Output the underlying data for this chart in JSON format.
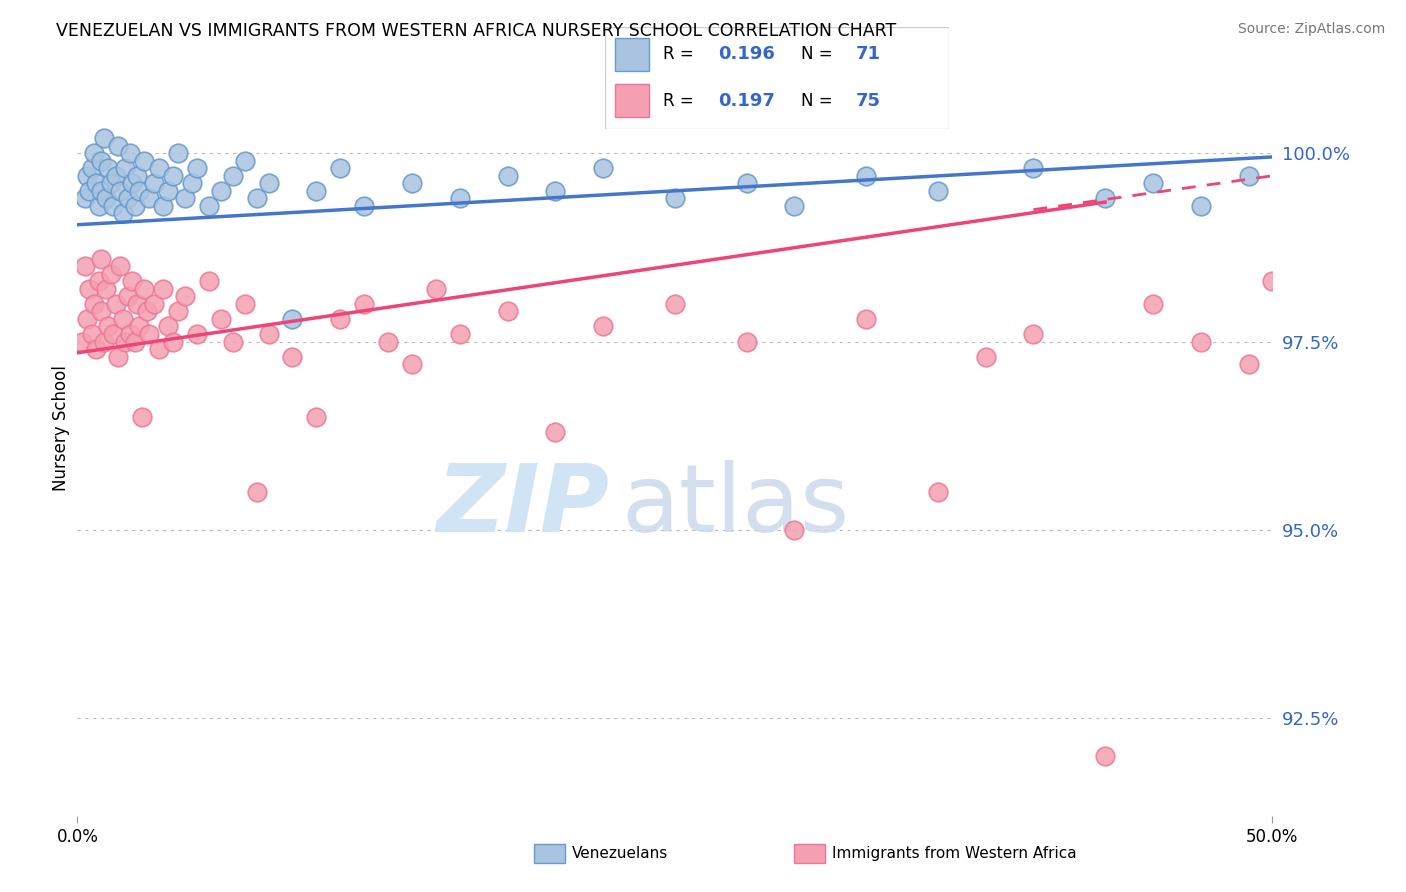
{
  "title": "VENEZUELAN VS IMMIGRANTS FROM WESTERN AFRICA NURSERY SCHOOL CORRELATION CHART",
  "source": "Source: ZipAtlas.com",
  "ylabel": "Nursery School",
  "ytick_values": [
    92.5,
    95.0,
    97.5,
    100.0
  ],
  "xlim": [
    0.0,
    50.0
  ],
  "ylim": [
    91.2,
    101.5
  ],
  "legend_blue_R": "0.196",
  "legend_blue_N": "71",
  "legend_pink_R": "0.197",
  "legend_pink_N": "75",
  "legend_label_blue": "Venezuelans",
  "legend_label_pink": "Immigrants from Western Africa",
  "blue_color": "#A8C4E0",
  "pink_color": "#F4A0B0",
  "blue_edge_color": "#6699CC",
  "pink_edge_color": "#EE7799",
  "blue_line_color": "#4477CC",
  "pink_line_color": "#EE4477",
  "accent_color": "#3366CC",
  "trend_blue_x0": 0.0,
  "trend_blue_y0": 99.05,
  "trend_blue_x1": 50.0,
  "trend_blue_y1": 99.95,
  "trend_pink_solid_x0": 0.0,
  "trend_pink_solid_y0": 97.35,
  "trend_pink_solid_x1": 43.0,
  "trend_pink_solid_y1": 99.35,
  "trend_pink_dash_x0": 40.0,
  "trend_pink_dash_y0": 99.25,
  "trend_pink_dash_x1": 50.0,
  "trend_pink_dash_y1": 99.7,
  "blue_x": [
    0.3,
    0.4,
    0.5,
    0.6,
    0.7,
    0.8,
    0.9,
    1.0,
    1.0,
    1.1,
    1.2,
    1.3,
    1.4,
    1.5,
    1.6,
    1.7,
    1.8,
    1.9,
    2.0,
    2.1,
    2.2,
    2.3,
    2.4,
    2.5,
    2.6,
    2.8,
    3.0,
    3.2,
    3.4,
    3.6,
    3.8,
    4.0,
    4.2,
    4.5,
    4.8,
    5.0,
    5.5,
    6.0,
    6.5,
    7.0,
    7.5,
    8.0,
    9.0,
    10.0,
    11.0,
    12.0,
    14.0,
    16.0,
    18.0,
    20.0,
    22.0,
    25.0,
    28.0,
    30.0,
    33.0,
    36.0,
    40.0,
    43.0,
    45.0,
    47.0,
    49.0
  ],
  "blue_y": [
    99.4,
    99.7,
    99.5,
    99.8,
    100.0,
    99.6,
    99.3,
    99.9,
    99.5,
    100.2,
    99.4,
    99.8,
    99.6,
    99.3,
    99.7,
    100.1,
    99.5,
    99.2,
    99.8,
    99.4,
    100.0,
    99.6,
    99.3,
    99.7,
    99.5,
    99.9,
    99.4,
    99.6,
    99.8,
    99.3,
    99.5,
    99.7,
    100.0,
    99.4,
    99.6,
    99.8,
    99.3,
    99.5,
    99.7,
    99.9,
    99.4,
    99.6,
    97.8,
    99.5,
    99.8,
    99.3,
    99.6,
    99.4,
    99.7,
    99.5,
    99.8,
    99.4,
    99.6,
    99.3,
    99.7,
    99.5,
    99.8,
    99.4,
    99.6,
    99.3,
    99.7
  ],
  "pink_x": [
    0.2,
    0.3,
    0.4,
    0.5,
    0.6,
    0.7,
    0.8,
    0.9,
    1.0,
    1.0,
    1.1,
    1.2,
    1.3,
    1.4,
    1.5,
    1.6,
    1.7,
    1.8,
    1.9,
    2.0,
    2.1,
    2.2,
    2.3,
    2.4,
    2.5,
    2.6,
    2.7,
    2.8,
    2.9,
    3.0,
    3.2,
    3.4,
    3.6,
    3.8,
    4.0,
    4.2,
    4.5,
    5.0,
    5.5,
    6.0,
    6.5,
    7.0,
    7.5,
    8.0,
    9.0,
    10.0,
    11.0,
    12.0,
    13.0,
    14.0,
    15.0,
    16.0,
    18.0,
    20.0,
    22.0,
    25.0,
    28.0,
    30.0,
    33.0,
    36.0,
    38.0,
    40.0,
    43.0,
    45.0,
    47.0,
    49.0,
    50.0
  ],
  "pink_y": [
    97.5,
    98.5,
    97.8,
    98.2,
    97.6,
    98.0,
    97.4,
    98.3,
    97.9,
    98.6,
    97.5,
    98.2,
    97.7,
    98.4,
    97.6,
    98.0,
    97.3,
    98.5,
    97.8,
    97.5,
    98.1,
    97.6,
    98.3,
    97.5,
    98.0,
    97.7,
    96.5,
    98.2,
    97.9,
    97.6,
    98.0,
    97.4,
    98.2,
    97.7,
    97.5,
    97.9,
    98.1,
    97.6,
    98.3,
    97.8,
    97.5,
    98.0,
    95.5,
    97.6,
    97.3,
    96.5,
    97.8,
    98.0,
    97.5,
    97.2,
    98.2,
    97.6,
    97.9,
    96.3,
    97.7,
    98.0,
    97.5,
    95.0,
    97.8,
    95.5,
    97.3,
    97.6,
    92.0,
    98.0,
    97.5,
    97.2,
    98.3
  ]
}
